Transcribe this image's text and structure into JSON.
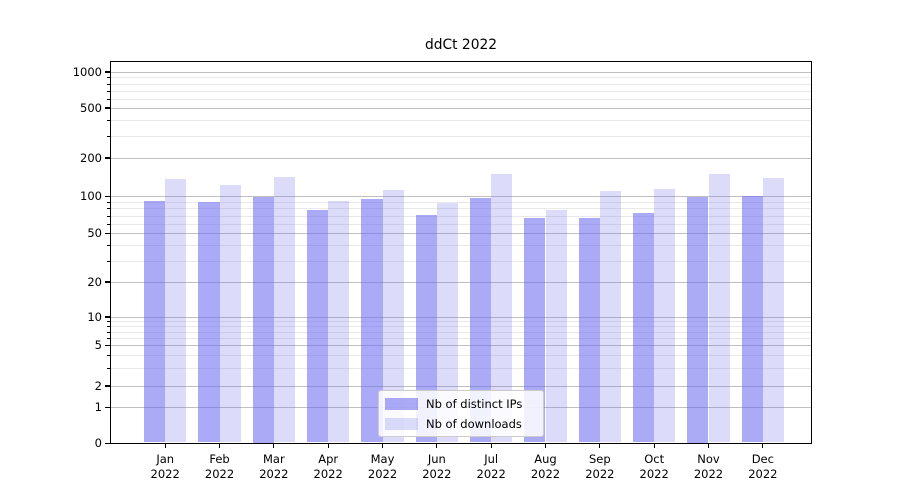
{
  "chart_data": {
    "type": "bar",
    "title": "ddCt 2022",
    "categories": [
      "Jan\n2022",
      "Feb\n2022",
      "Mar\n2022",
      "Apr\n2022",
      "May\n2022",
      "Jun\n2022",
      "Jul\n2022",
      "Aug\n2022",
      "Sep\n2022",
      "Oct\n2022",
      "Nov\n2022",
      "Dec\n2022"
    ],
    "series": [
      {
        "name": "Nb of distinct IPs",
        "color": "rgba(100,100,240,0.55)",
        "values": [
          92,
          91,
          100,
          77,
          95,
          71,
          97,
          67,
          67,
          74,
          100,
          101
        ]
      },
      {
        "name": "Nb of downloads",
        "color": "rgba(110,110,235,0.24)",
        "values": [
          136,
          122,
          141,
          92,
          112,
          88,
          149,
          77,
          111,
          114,
          151,
          140
        ]
      }
    ],
    "yscale": "symlog",
    "yticks": [
      0,
      1,
      2,
      5,
      10,
      20,
      50,
      100,
      200,
      500,
      1000
    ],
    "minor_gridlines": [
      3,
      4,
      6,
      7,
      8,
      9,
      30,
      40,
      60,
      70,
      80,
      90,
      300,
      400,
      600,
      700,
      800,
      900
    ],
    "ylim": [
      0,
      1300
    ],
    "grid": "both",
    "legend_position": "lower center",
    "colors": {
      "bar_dark": "rgba(100,100,240,0.55)",
      "bar_light": "rgba(110,110,235,0.24)",
      "major_grid": "#c0c0c0",
      "minor_grid": "#e9e9e9",
      "axis_frame": "#000000",
      "background": "#ffffff"
    }
  }
}
